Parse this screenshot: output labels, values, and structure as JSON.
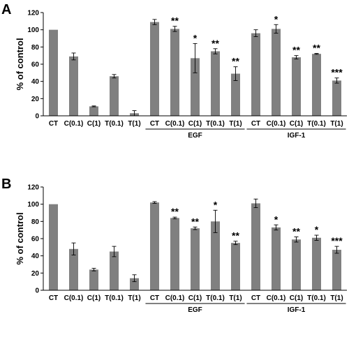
{
  "chart_data": [
    {
      "panel": "A",
      "type": "bar",
      "ylabel": "% of control",
      "ylim": [
        0,
        120
      ],
      "yticks": [
        "0",
        "20",
        "40",
        "60",
        "80",
        "100",
        "120"
      ],
      "grid": false,
      "bar_color": "#808080",
      "categories": [
        "CT",
        "C(0.1)",
        "C(1)",
        "T(0.1)",
        "T(1)",
        "CT",
        "C(0.1)",
        "C(1)",
        "T(0.1)",
        "T(1)",
        "CT",
        "C(0.1)",
        "C(1)",
        "T(0.1)",
        "T(1)"
      ],
      "values": [
        100,
        69,
        11,
        46,
        3,
        109,
        101,
        67,
        75,
        49,
        96,
        101,
        68,
        72,
        41
      ],
      "errors": [
        0,
        4,
        0.5,
        2,
        3,
        3,
        3,
        17,
        3,
        8,
        4,
        5,
        2,
        0.5,
        3
      ],
      "significance": [
        "",
        "",
        "",
        "",
        "",
        "",
        "**",
        "*",
        "**",
        "**",
        "",
        "*",
        "**",
        "**",
        "***"
      ],
      "groups": [
        {
          "label": "EGF",
          "start": 5,
          "end": 9
        },
        {
          "label": "IGF-1",
          "start": 10,
          "end": 14
        }
      ]
    },
    {
      "panel": "B",
      "type": "bar",
      "ylabel": "% of control",
      "ylim": [
        0,
        120
      ],
      "yticks": [
        "0",
        "20",
        "40",
        "60",
        "80",
        "100",
        "120"
      ],
      "grid": false,
      "bar_color": "#808080",
      "categories": [
        "CT",
        "C(0.1)",
        "C(1)",
        "T(0.1)",
        "T(1)",
        "CT",
        "C(0.1)",
        "C(1)",
        "T(0.1)",
        "T(1)",
        "CT",
        "C(0.1)",
        "C(1)",
        "T(0.1)",
        "T(1)"
      ],
      "values": [
        100,
        48,
        24,
        45,
        14,
        102,
        84,
        72,
        80,
        55,
        101,
        73,
        59,
        61,
        47
      ],
      "errors": [
        0,
        7,
        1.5,
        6,
        4,
        1,
        1,
        1.5,
        13,
        2,
        5,
        3,
        3,
        3,
        4
      ],
      "significance": [
        "",
        "",
        "",
        "",
        "",
        "",
        "**",
        "**",
        "*",
        "**",
        "",
        "*",
        "**",
        "*",
        "***"
      ],
      "groups": [
        {
          "label": "EGF",
          "start": 5,
          "end": 9
        },
        {
          "label": "IGF-1",
          "start": 10,
          "end": 14
        }
      ]
    }
  ]
}
